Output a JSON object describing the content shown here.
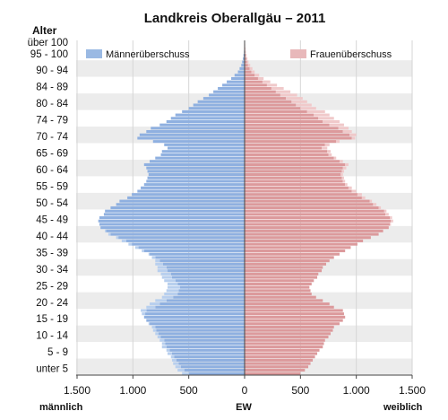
{
  "chart_data": {
    "type": "bar",
    "title": "Landkreis Oberallgäu – 2011",
    "y_axis_title": "Alter",
    "x_axis_center_label": "EW",
    "x_axis_left_label": "männlich",
    "x_axis_right_label": "weiblich",
    "x_ticks": [
      "1.500",
      "1.000",
      "500",
      "0",
      "500",
      "1.000",
      "1.500"
    ],
    "x_tick_values": [
      -1500,
      -1000,
      -500,
      0,
      500,
      1000,
      1500
    ],
    "xlim": [
      -1500,
      1500
    ],
    "age_range": [
      0,
      101
    ],
    "age_labels": [
      {
        "label": "unter 5",
        "age": 2
      },
      {
        "label": "5 - 9",
        "age": 7
      },
      {
        "label": "10 - 14",
        "age": 12
      },
      {
        "label": "15 - 19",
        "age": 17
      },
      {
        "label": "20 - 24",
        "age": 22
      },
      {
        "label": "25 - 29",
        "age": 27
      },
      {
        "label": "30 - 34",
        "age": 32
      },
      {
        "label": "35 - 39",
        "age": 37
      },
      {
        "label": "40 - 44",
        "age": 42
      },
      {
        "label": "45 - 49",
        "age": 47
      },
      {
        "label": "50 - 54",
        "age": 52
      },
      {
        "label": "55 - 59",
        "age": 57
      },
      {
        "label": "60 - 64",
        "age": 62
      },
      {
        "label": "65 - 69",
        "age": 67
      },
      {
        "label": "70 - 74",
        "age": 72
      },
      {
        "label": "74 - 79",
        "age": 77
      },
      {
        "label": "80 - 84",
        "age": 82
      },
      {
        "label": "84 - 89",
        "age": 87
      },
      {
        "label": "90 - 94",
        "age": 92
      },
      {
        "label": "95 - 100",
        "age": 97
      },
      {
        "label": "über 100",
        "age": 100.5
      }
    ],
    "legend": [
      {
        "name": "Männerüberschuss",
        "color": "#9ab9e3"
      },
      {
        "name": "Frauenüberschuss",
        "color": "#e8b8ba"
      }
    ],
    "legend_placement": "top",
    "colors": {
      "male": "#8fb0e0",
      "female": "#dc9a9c",
      "male_surplus": "#b8cfee",
      "female_surplus": "#f0c9ca",
      "band": "#ececec",
      "axis": "#444444"
    },
    "series": [
      {
        "name": "männlich",
        "values": [
          560,
          600,
          620,
          640,
          650,
          660,
          690,
          700,
          740,
          740,
          760,
          780,
          800,
          820,
          830,
          860,
          880,
          900,
          920,
          930,
          880,
          850,
          800,
          740,
          720,
          700,
          690,
          690,
          720,
          740,
          750,
          780,
          780,
          800,
          800,
          830,
          860,
          920,
          980,
          1040,
          1100,
          1150,
          1220,
          1250,
          1290,
          1300,
          1310,
          1300,
          1260,
          1250,
          1200,
          1150,
          1120,
          1050,
          1010,
          960,
          930,
          900,
          880,
          870,
          860,
          870,
          880,
          900,
          850,
          800,
          750,
          740,
          690,
          720,
          820,
          960,
          940,
          880,
          840,
          760,
          700,
          660,
          620,
          560,
          500,
          460,
          420,
          370,
          320,
          280,
          240,
          200,
          160,
          120,
          90,
          60,
          45,
          30,
          22,
          15,
          10,
          6,
          4,
          2,
          1
        ]
      },
      {
        "name": "weiblich",
        "values": [
          500,
          540,
          570,
          590,
          610,
          630,
          650,
          670,
          700,
          710,
          720,
          750,
          770,
          790,
          800,
          850,
          880,
          900,
          890,
          880,
          800,
          760,
          700,
          640,
          600,
          590,
          580,
          600,
          620,
          650,
          660,
          690,
          700,
          730,
          760,
          800,
          850,
          900,
          950,
          1010,
          1060,
          1130,
          1200,
          1240,
          1290,
          1310,
          1330,
          1320,
          1290,
          1270,
          1220,
          1180,
          1140,
          1080,
          1050,
          1000,
          960,
          920,
          900,
          890,
          880,
          890,
          910,
          930,
          880,
          820,
          780,
          770,
          740,
          760,
          850,
          990,
          1000,
          960,
          930,
          890,
          850,
          800,
          760,
          720,
          640,
          600,
          560,
          520,
          470,
          410,
          350,
          290,
          230,
          170,
          130,
          90,
          70,
          50,
          35,
          25,
          18,
          12,
          8,
          5,
          3
        ]
      }
    ],
    "grid": false
  }
}
